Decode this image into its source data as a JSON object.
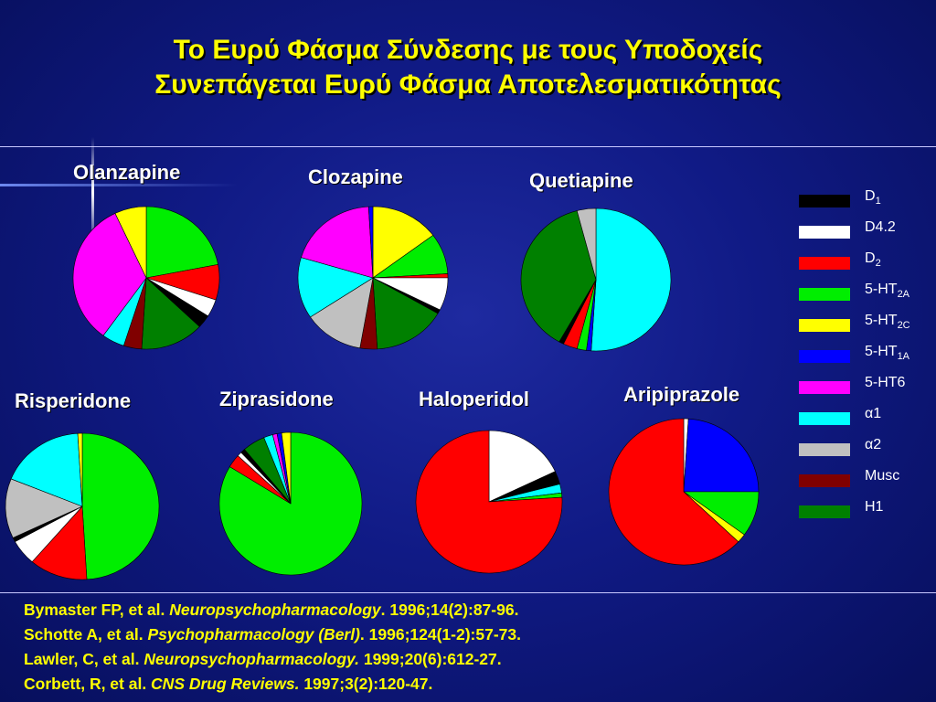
{
  "title": {
    "line1": "Το Ευρύ Φάσμα Σύνδεσης με τους Υποδοχείς",
    "line2": "Συνεπάγεται Ευρύ Φάσμα Αποτελεσματικότητας"
  },
  "legend": [
    {
      "key": "D1",
      "base": "D",
      "sub": "1",
      "color": "#000000"
    },
    {
      "key": "D4.2",
      "base": "D4.2",
      "sub": "",
      "color": "#ffffff"
    },
    {
      "key": "D2",
      "base": "D",
      "sub": "2",
      "color": "#ff0000"
    },
    {
      "key": "5-HT2A",
      "base": "5-HT",
      "sub": "2A",
      "color": "#00ee00"
    },
    {
      "key": "5-HT2C",
      "base": "5-HT",
      "sub": "2C",
      "color": "#ffff00"
    },
    {
      "key": "5-HT1A",
      "base": "5-HT",
      "sub": "1A",
      "color": "#0000ff"
    },
    {
      "key": "5-HT6",
      "base": "5-HT6",
      "sub": "",
      "color": "#ff00ff"
    },
    {
      "key": "α1",
      "base": "α1",
      "sub": "",
      "color": "#00ffff"
    },
    {
      "key": "α2",
      "base": "α2",
      "sub": "",
      "color": "#c0c0c0"
    },
    {
      "key": "Musc",
      "base": "Musc",
      "sub": "",
      "color": "#800000"
    },
    {
      "key": "H1",
      "base": "H1",
      "sub": "",
      "color": "#008000"
    }
  ],
  "chart_data": [
    {
      "type": "pie",
      "title": "Olanzapine",
      "start_angle": 90,
      "labels": [
        "5-HT2A",
        "D2",
        "D4.2",
        "D1",
        "H1",
        "Musc",
        "α1",
        "5-HT6",
        "5-HT2C"
      ],
      "values": [
        22,
        8,
        4,
        3,
        14,
        4,
        5,
        33,
        7
      ]
    },
    {
      "type": "pie",
      "title": "Clozapine",
      "start_angle": 90,
      "labels": [
        "5-HT2C",
        "5-HT2A",
        "D2",
        "D4.2",
        "D1",
        "H1",
        "Musc",
        "α2",
        "α1",
        "5-HT6",
        "5-HT1A"
      ],
      "values": [
        16,
        10,
        1,
        8,
        1,
        17,
        4,
        14,
        15,
        21,
        1
      ]
    },
    {
      "type": "pie",
      "title": "Quetiapine",
      "start_angle": 90,
      "labels": [
        "α1",
        "5-HT1A",
        "5-HT2A",
        "D2",
        "D1",
        "H1",
        "α2"
      ],
      "values": [
        50,
        1,
        2,
        3,
        1,
        37,
        4
      ]
    },
    {
      "type": "pie",
      "title": "Risperidone",
      "start_angle": 90,
      "labels": [
        "5-HT2A",
        "D2",
        "D4.2",
        "D1",
        "α2",
        "α1",
        "5-HT2C"
      ],
      "values": [
        52,
        13,
        6,
        1,
        14,
        19,
        1
      ]
    },
    {
      "type": "pie",
      "title": "Ziprasidone",
      "start_angle": 90,
      "labels": [
        "5-HT2A",
        "D2",
        "D4.2",
        "D1",
        "H1",
        "α1",
        "5-HT6",
        "5-HT1A",
        "5-HT2C"
      ],
      "values": [
        82,
        3,
        1,
        1,
        5,
        2,
        1,
        1,
        2
      ]
    },
    {
      "type": "pie",
      "title": "Haloperidol",
      "start_angle": 90,
      "labels": [
        "D4.2",
        "D1",
        "α1",
        "5-HT2A",
        "D2"
      ],
      "values": [
        18,
        3,
        2,
        1,
        76
      ]
    },
    {
      "type": "pie",
      "title": "Aripiprazole",
      "start_angle": 90,
      "labels": [
        "D4.2",
        "5-HT1A",
        "5-HT2A",
        "5-HT2C",
        "D2"
      ],
      "values": [
        1,
        24,
        10,
        2,
        63
      ]
    }
  ],
  "references": [
    {
      "pre": "Bymaster FP, et al. ",
      "journal": "Neuropsychopharmacology",
      "post": ". 1996;14(2):87-96."
    },
    {
      "pre": "Schotte A, et al. ",
      "journal": "Psychopharmacology (Berl)",
      "post": ". 1996;124(1-2):57-73."
    },
    {
      "pre": "Lawler, C, et al. ",
      "journal": "Neuropsychopharmacology.",
      "post": " 1999;20(6):612-27."
    },
    {
      "pre": "Corbett, R, et al. ",
      "journal": "CNS Drug Reviews.",
      "post": " 1997;3(2):120-47."
    }
  ]
}
